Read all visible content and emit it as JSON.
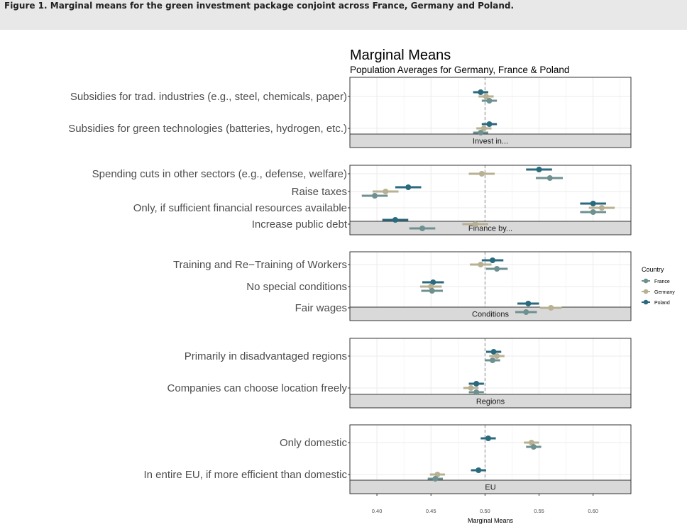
{
  "figure": {
    "caption": "Figure 1. Marginal means for the green investment package conjoint across France, Germany and Poland."
  },
  "colors": {
    "France": "#6e9090",
    "Germany": "#b8b092",
    "Poland": "#2a6a7e",
    "strip_fill": "#d9d9d9",
    "grid": "#ebebeb"
  },
  "chart_data": {
    "type": "scatter",
    "title": "Marginal Means",
    "subtitle": "Population Averages for Germany, France & Poland",
    "xlabel": "Marginal Means",
    "xlim": [
      0.375,
      0.635
    ],
    "x_ticks": [
      0.4,
      0.45,
      0.5,
      0.55,
      0.6
    ],
    "x_tick_labels": [
      "0.40",
      "0.45",
      "0.50",
      "0.55",
      "0.60"
    ],
    "reference_line": 0.5,
    "grid": true,
    "legend": {
      "title": "Country",
      "position": "right",
      "entries": [
        "France",
        "Germany",
        "Poland"
      ]
    },
    "panels": [
      {
        "strip": "Invest in...",
        "levels": [
          {
            "label": "Subsidies for trad. industries (e.g., steel, chemicals, paper)",
            "points": {
              "Poland": {
                "estimate": 0.496,
                "lower": 0.489,
                "upper": 0.503
              },
              "Germany": {
                "estimate": 0.501,
                "lower": 0.494,
                "upper": 0.508
              },
              "France": {
                "estimate": 0.504,
                "lower": 0.497,
                "upper": 0.511
              }
            }
          },
          {
            "label": "Subsidies for green technologies (batteries, hydrogen, etc.)",
            "points": {
              "Poland": {
                "estimate": 0.504,
                "lower": 0.497,
                "upper": 0.511
              },
              "Germany": {
                "estimate": 0.499,
                "lower": 0.492,
                "upper": 0.506
              },
              "France": {
                "estimate": 0.496,
                "lower": 0.489,
                "upper": 0.503
              }
            }
          }
        ]
      },
      {
        "strip": "Finance by...",
        "levels": [
          {
            "label": "Spending cuts in other sectors (e.g., defense, welfare)",
            "points": {
              "Poland": {
                "estimate": 0.55,
                "lower": 0.538,
                "upper": 0.562
              },
              "Germany": {
                "estimate": 0.497,
                "lower": 0.485,
                "upper": 0.509
              },
              "France": {
                "estimate": 0.56,
                "lower": 0.547,
                "upper": 0.572
              }
            }
          },
          {
            "label": "Raise taxes",
            "points": {
              "Poland": {
                "estimate": 0.429,
                "lower": 0.417,
                "upper": 0.441
              },
              "Germany": {
                "estimate": 0.408,
                "lower": 0.396,
                "upper": 0.42
              },
              "France": {
                "estimate": 0.398,
                "lower": 0.386,
                "upper": 0.41
              }
            }
          },
          {
            "label": "Only, if sufficient financial resources available",
            "points": {
              "Poland": {
                "estimate": 0.6,
                "lower": 0.588,
                "upper": 0.612
              },
              "Germany": {
                "estimate": 0.608,
                "lower": 0.596,
                "upper": 0.62
              },
              "France": {
                "estimate": 0.6,
                "lower": 0.588,
                "upper": 0.612
              }
            }
          },
          {
            "label": "Increase public debt",
            "points": {
              "Poland": {
                "estimate": 0.417,
                "lower": 0.405,
                "upper": 0.429
              },
              "Germany": {
                "estimate": 0.491,
                "lower": 0.479,
                "upper": 0.503
              },
              "France": {
                "estimate": 0.442,
                "lower": 0.43,
                "upper": 0.454
              }
            }
          }
        ]
      },
      {
        "strip": "Conditions",
        "levels": [
          {
            "label": "Training and Re−Training of Workers",
            "points": {
              "Poland": {
                "estimate": 0.507,
                "lower": 0.497,
                "upper": 0.517
              },
              "Germany": {
                "estimate": 0.496,
                "lower": 0.486,
                "upper": 0.506
              },
              "France": {
                "estimate": 0.511,
                "lower": 0.501,
                "upper": 0.521
              }
            }
          },
          {
            "label": "No special conditions",
            "points": {
              "Poland": {
                "estimate": 0.452,
                "lower": 0.442,
                "upper": 0.462
              },
              "Germany": {
                "estimate": 0.45,
                "lower": 0.44,
                "upper": 0.46
              },
              "France": {
                "estimate": 0.451,
                "lower": 0.441,
                "upper": 0.461
              }
            }
          },
          {
            "label": "Fair wages",
            "points": {
              "Poland": {
                "estimate": 0.54,
                "lower": 0.53,
                "upper": 0.55
              },
              "Germany": {
                "estimate": 0.561,
                "lower": 0.551,
                "upper": 0.571
              },
              "France": {
                "estimate": 0.538,
                "lower": 0.528,
                "upper": 0.548
              }
            }
          }
        ]
      },
      {
        "strip": "Regions",
        "levels": [
          {
            "label": "Primarily in disadvantaged regions",
            "points": {
              "Poland": {
                "estimate": 0.508,
                "lower": 0.501,
                "upper": 0.515
              },
              "Germany": {
                "estimate": 0.511,
                "lower": 0.504,
                "upper": 0.518
              },
              "France": {
                "estimate": 0.507,
                "lower": 0.5,
                "upper": 0.514
              }
            }
          },
          {
            "label": "Companies can choose location freely",
            "points": {
              "Poland": {
                "estimate": 0.492,
                "lower": 0.485,
                "upper": 0.499
              },
              "Germany": {
                "estimate": 0.487,
                "lower": 0.48,
                "upper": 0.494
              },
              "France": {
                "estimate": 0.492,
                "lower": 0.485,
                "upper": 0.499
              }
            }
          }
        ]
      },
      {
        "strip": "EU",
        "levels": [
          {
            "label": "Only domestic",
            "points": {
              "Poland": {
                "estimate": 0.503,
                "lower": 0.496,
                "upper": 0.51
              },
              "Germany": {
                "estimate": 0.543,
                "lower": 0.536,
                "upper": 0.55
              },
              "France": {
                "estimate": 0.545,
                "lower": 0.538,
                "upper": 0.552
              }
            }
          },
          {
            "label": "In entire EU, if more efficient than domestic",
            "points": {
              "Poland": {
                "estimate": 0.494,
                "lower": 0.487,
                "upper": 0.501
              },
              "Germany": {
                "estimate": 0.456,
                "lower": 0.449,
                "upper": 0.463
              },
              "France": {
                "estimate": 0.454,
                "lower": 0.447,
                "upper": 0.461
              }
            }
          }
        ]
      }
    ]
  }
}
